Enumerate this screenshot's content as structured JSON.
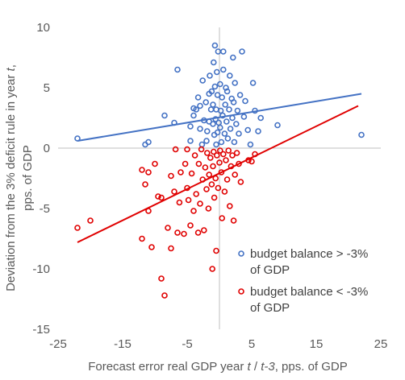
{
  "chart_data": {
    "type": "scatter",
    "title": "",
    "xlabel": [
      "Forecast error real GDP year ",
      "t",
      " / ",
      "t-3",
      ", pps. of GDP"
    ],
    "ylabel": [
      "Deviation from the 3% deficit rule in year ",
      "t",
      ","
    ],
    "ylabel2": "pps. of GDP",
    "xlim": [
      -25,
      25
    ],
    "ylim": [
      -15,
      10
    ],
    "xticks": [
      -25,
      -15,
      -5,
      5,
      15,
      25
    ],
    "yticks": [
      10,
      5,
      0,
      -5,
      -10,
      -15
    ],
    "xtick_labels": [
      "-25",
      "-15",
      "-5",
      "5",
      "15",
      "25"
    ],
    "ytick_labels": [
      "10",
      "5",
      "0",
      "-5",
      "-10",
      "-15"
    ],
    "grid": false,
    "legend_position": "bottom-right",
    "series": [
      {
        "name": [
          "budget balance > -3%",
          "of GDP"
        ],
        "color": "#4472c4",
        "marker": "open-circle",
        "trendline": [
          [
            -22,
            0.6
          ],
          [
            22,
            4.5
          ]
        ],
        "points": [
          [
            -22,
            0.8
          ],
          [
            -11.5,
            0.3
          ],
          [
            -11,
            0.5
          ],
          [
            -8.5,
            2.7
          ],
          [
            -7,
            2.1
          ],
          [
            -6.5,
            6.5
          ],
          [
            -4.5,
            0.6
          ],
          [
            -4.5,
            1.8
          ],
          [
            -4,
            2.7
          ],
          [
            -4,
            3.3
          ],
          [
            -3.6,
            3.2
          ],
          [
            -3.3,
            4.2
          ],
          [
            -3,
            1.6
          ],
          [
            -3,
            3.5
          ],
          [
            -2.7,
            0.3
          ],
          [
            -2.6,
            5.6
          ],
          [
            -2.4,
            2.3
          ],
          [
            -2.1,
            3.8
          ],
          [
            -2,
            0.6
          ],
          [
            -1.9,
            1.4
          ],
          [
            -1.6,
            2.2
          ],
          [
            -1.6,
            4.5
          ],
          [
            -1.5,
            6.0
          ],
          [
            -1.3,
            3.2
          ],
          [
            -1.2,
            4.7
          ],
          [
            -1,
            2.0
          ],
          [
            -1,
            3.6
          ],
          [
            -0.9,
            7.1
          ],
          [
            -0.8,
            1.1
          ],
          [
            -0.7,
            5.1
          ],
          [
            -0.7,
            8.5
          ],
          [
            -0.6,
            2.4
          ],
          [
            -0.5,
            3.2
          ],
          [
            -0.5,
            0.3
          ],
          [
            -0.4,
            6.3
          ],
          [
            -0.3,
            1.3
          ],
          [
            -0.3,
            4.4
          ],
          [
            -0.2,
            8.0
          ],
          [
            -0.1,
            2.1
          ],
          [
            0.1,
            5.3
          ],
          [
            0.1,
            1.7
          ],
          [
            0.2,
            3.1
          ],
          [
            0.3,
            0.5
          ],
          [
            0.4,
            4.2
          ],
          [
            0.5,
            2.7
          ],
          [
            0.6,
            6.5
          ],
          [
            0.6,
            8.0
          ],
          [
            0.8,
            1.2
          ],
          [
            0.9,
            3.6
          ],
          [
            1,
            5.0
          ],
          [
            1.1,
            2.2
          ],
          [
            1.2,
            4.7
          ],
          [
            1.3,
            0.8
          ],
          [
            1.5,
            3.2
          ],
          [
            1.6,
            6.0
          ],
          [
            1.7,
            1.6
          ],
          [
            1.9,
            4.1
          ],
          [
            2,
            2.5
          ],
          [
            2.1,
            7.5
          ],
          [
            2.2,
            3.8
          ],
          [
            2.3,
            0.5
          ],
          [
            2.4,
            5.4
          ],
          [
            2.6,
            2.0
          ],
          [
            2.8,
            3.1
          ],
          [
            3,
            1.2
          ],
          [
            3.2,
            4.4
          ],
          [
            3.5,
            8.0
          ],
          [
            3.8,
            2.6
          ],
          [
            4,
            3.9
          ],
          [
            4.4,
            1.5
          ],
          [
            4.8,
            0.3
          ],
          [
            5.2,
            5.4
          ],
          [
            5.5,
            3.1
          ],
          [
            6,
            1.4
          ],
          [
            6.4,
            2.5
          ],
          [
            9,
            1.9
          ],
          [
            22,
            1.1
          ]
        ]
      },
      {
        "name": [
          "budget balance < -3%",
          "of GDP"
        ],
        "color": "#e00000",
        "marker": "open-circle",
        "trendline": [
          [
            -22,
            -7.8
          ],
          [
            21.5,
            3.5
          ]
        ],
        "points": [
          [
            -22,
            -6.6
          ],
          [
            -20,
            -6.0
          ],
          [
            -12,
            -1.8
          ],
          [
            -12,
            -7.5
          ],
          [
            -11.5,
            -3.0
          ],
          [
            -11,
            -2.0
          ],
          [
            -11,
            -5.2
          ],
          [
            -10.5,
            -8.2
          ],
          [
            -10,
            -1.3
          ],
          [
            -9.5,
            -4.0
          ],
          [
            -9,
            -4.1
          ],
          [
            -9,
            -10.8
          ],
          [
            -8.5,
            -12.2
          ],
          [
            -8,
            -6.6
          ],
          [
            -7.5,
            -2.3
          ],
          [
            -7.5,
            -8.3
          ],
          [
            -7,
            -3.6
          ],
          [
            -6.8,
            -0.1
          ],
          [
            -6.5,
            -7.0
          ],
          [
            -6.2,
            -4.5
          ],
          [
            -6,
            -2.0
          ],
          [
            -5.5,
            -7.1
          ],
          [
            -5.3,
            -1.3
          ],
          [
            -5,
            -0.1
          ],
          [
            -5,
            -3.3
          ],
          [
            -4.8,
            -4.3
          ],
          [
            -4.5,
            -6.4
          ],
          [
            -4.3,
            -2.1
          ],
          [
            -4,
            -5.2
          ],
          [
            -3.8,
            -0.6
          ],
          [
            -3.6,
            -3.8
          ],
          [
            -3.3,
            -7.0
          ],
          [
            -3.2,
            -1.3
          ],
          [
            -3,
            -4.6
          ],
          [
            -2.8,
            -0.1
          ],
          [
            -2.6,
            -2.6
          ],
          [
            -2.4,
            -6.8
          ],
          [
            -2.2,
            -1.6
          ],
          [
            -2,
            -3.4
          ],
          [
            -1.9,
            -0.4
          ],
          [
            -1.7,
            -5.0
          ],
          [
            -1.6,
            -2.2
          ],
          [
            -1.4,
            -0.8
          ],
          [
            -1.2,
            -3.0
          ],
          [
            -1.1,
            -10.0
          ],
          [
            -1,
            -1.5
          ],
          [
            -0.9,
            -0.3
          ],
          [
            -0.8,
            -4.1
          ],
          [
            -0.6,
            -2.5
          ],
          [
            -0.5,
            -8.5
          ],
          [
            -0.4,
            -0.6
          ],
          [
            -0.2,
            -3.3
          ],
          [
            0,
            -1.2
          ],
          [
            0.1,
            -0.2
          ],
          [
            0.3,
            -2.0
          ],
          [
            0.4,
            -5.8
          ],
          [
            0.6,
            -0.5
          ],
          [
            0.8,
            -3.6
          ],
          [
            1,
            -1.0
          ],
          [
            1.2,
            -2.6
          ],
          [
            1.4,
            -0.2
          ],
          [
            1.6,
            -4.8
          ],
          [
            1.8,
            -1.5
          ],
          [
            2,
            -0.6
          ],
          [
            2.2,
            -6.0
          ],
          [
            2.4,
            -2.2
          ],
          [
            2.7,
            -0.4
          ],
          [
            3,
            -1.3
          ],
          [
            3.3,
            -2.8
          ],
          [
            4.5,
            -1.0
          ],
          [
            5,
            -1.1
          ],
          [
            5.5,
            -0.5
          ]
        ]
      }
    ]
  }
}
